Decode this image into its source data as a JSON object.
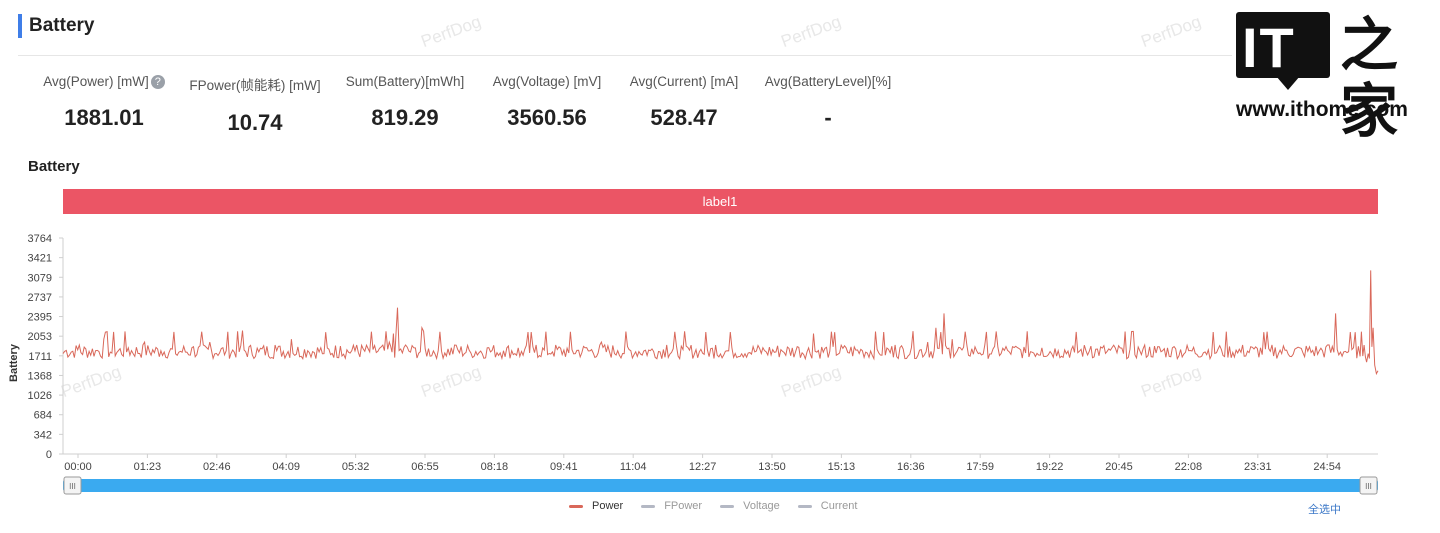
{
  "section": {
    "title": "Battery"
  },
  "metrics": [
    {
      "label": "Avg(Power) [mW]",
      "value": "1881.01",
      "help": "?"
    },
    {
      "label": "FPower(帧能耗) [mW]",
      "value": "10.74"
    },
    {
      "label": "Sum(Battery)[mWh]",
      "value": "819.29"
    },
    {
      "label": "Avg(Voltage) [mV]",
      "value": "3560.56"
    },
    {
      "label": "Avg(Current) [mA]",
      "value": "528.47"
    },
    {
      "label": "Avg(BatteryLevel)[%]",
      "value": "-"
    }
  ],
  "logo": {
    "mark": "IT",
    "cn": "之家",
    "url": "www.ithome.com"
  },
  "watermark": "PerfDog",
  "select_all": "全选中",
  "colors": {
    "accent": "#3f7ee8",
    "label_band": "#eb5565",
    "power": "#d9685a",
    "inactive": "#b4b8c4",
    "slider": "#3aaaf0"
  },
  "chart_data": {
    "type": "line",
    "title": "Battery",
    "band_label": "label1",
    "ylabel": "Battery",
    "xlabel": "",
    "ylim": [
      0,
      3764
    ],
    "yticks": [
      "3764",
      "3421",
      "3079",
      "2737",
      "2395",
      "2053",
      "1711",
      "1368",
      "1026",
      "684",
      "342",
      "0"
    ],
    "xticks": [
      "00:00",
      "01:23",
      "02:46",
      "04:09",
      "05:32",
      "06:55",
      "08:18",
      "09:41",
      "11:04",
      "12:27",
      "13:50",
      "15:13",
      "16:36",
      "17:59",
      "19:22",
      "20:45",
      "22:08",
      "23:31",
      "24:54"
    ],
    "x_range_seconds": [
      0,
      1612
    ],
    "series": [
      {
        "name": "Power",
        "active": true,
        "x": [
          0,
          20,
          40,
          50,
          60,
          80,
          100,
          120,
          140,
          160,
          180,
          200,
          220,
          240,
          260,
          280,
          300,
          320,
          340,
          360,
          380,
          400,
          405,
          410,
          420,
          430,
          440,
          460,
          480,
          500,
          520,
          540,
          560,
          580,
          600,
          620,
          640,
          660,
          680,
          700,
          720,
          740,
          760,
          780,
          800,
          820,
          840,
          860,
          880,
          900,
          920,
          940,
          960,
          980,
          1000,
          1020,
          1040,
          1060,
          1070,
          1080,
          1090,
          1100,
          1120,
          1140,
          1160,
          1180,
          1200,
          1220,
          1240,
          1260,
          1280,
          1300,
          1320,
          1340,
          1360,
          1380,
          1400,
          1420,
          1440,
          1460,
          1480,
          1500,
          1520,
          1540,
          1550,
          1560,
          1570,
          1580,
          1590,
          1595,
          1598,
          1600,
          1603,
          1606,
          1608,
          1610,
          1612
        ],
        "y": [
          1750,
          1900,
          1800,
          2000,
          1760,
          1850,
          1950,
          1800,
          1720,
          1870,
          1950,
          1800,
          2150,
          1780,
          1900,
          2000,
          1800,
          1750,
          1880,
          1900,
          1820,
          1950,
          2100,
          2550,
          1900,
          1850,
          2200,
          1800,
          1900,
          1760,
          1850,
          1800,
          1700,
          1900,
          1780,
          1760,
          1850,
          1950,
          1800,
          1730,
          1800,
          1900,
          1820,
          1780,
          1900,
          1850,
          1760,
          1800,
          1820,
          1870,
          2100,
          1790,
          1850,
          1800,
          1760,
          1900,
          1850,
          1950,
          2200,
          2450,
          2000,
          1850,
          1800,
          1830,
          1780,
          1760,
          1850,
          1800,
          1770,
          1880,
          1790,
          1750,
          1800,
          1760,
          1850,
          1800,
          1780,
          1820,
          1760,
          1830,
          1790,
          1810,
          1760,
          1800,
          1900,
          2450,
          1780,
          1820,
          1700,
          1900,
          1600,
          1750,
          3200,
          2200,
          1550,
          1400,
          1450
        ]
      },
      {
        "name": "FPower",
        "active": false
      },
      {
        "name": "Voltage",
        "active": false
      },
      {
        "name": "Current",
        "active": false
      }
    ],
    "grid": false,
    "legend_position": "bottom-center"
  }
}
